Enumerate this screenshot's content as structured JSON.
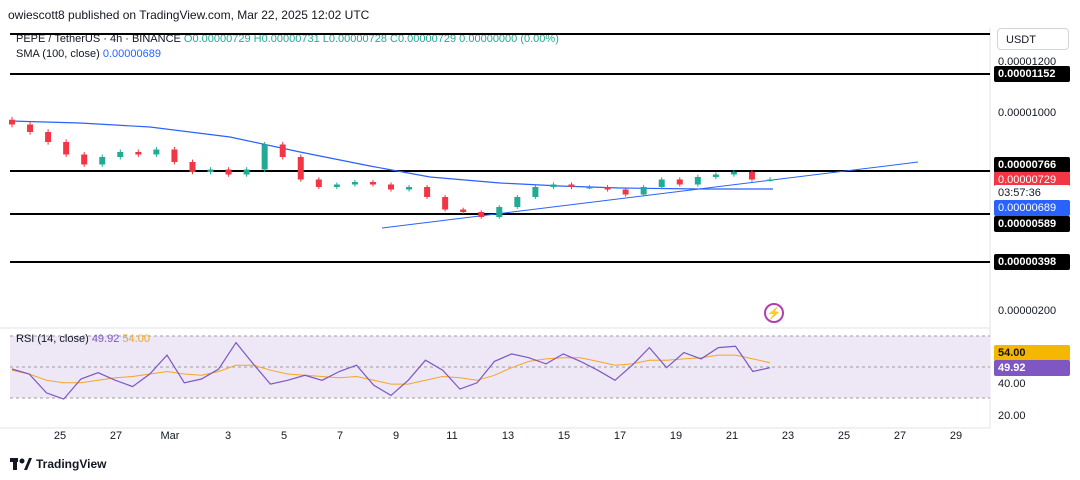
{
  "header": {
    "text": "owiescott8 published on TradingView.com, Mar 22, 2025 12:02 UTC"
  },
  "legend": {
    "symbol": "PEPE / TetherUS · 4h · BINANCE",
    "ohlc": "O0.00000729 H0.00000731 L0.00000728 C0.00000729 0.00000000 (0.00%)",
    "sma_label": "SMA (100, close)",
    "sma_value": "0.00000689"
  },
  "currency_button": "USDT",
  "price_axis": {
    "ticks": [
      "0.00001200",
      "0.00001000",
      "0.00000200"
    ],
    "lines": {
      "l1152": "0.00001152",
      "l766": "0.00000766",
      "l589": "0.00000589",
      "l398": "0.00000398"
    },
    "last_price": "0.00000729",
    "countdown": "03:57:36",
    "sma_price": "0.00000689"
  },
  "rsi": {
    "label": "RSI (14, close)",
    "value": "49.92",
    "ma_value": "54.00",
    "ticks": [
      "40.00",
      "20.00"
    ]
  },
  "x_axis": {
    "labels": [
      "25",
      "27",
      "Mar",
      "3",
      "5",
      "7",
      "9",
      "11",
      "13",
      "15",
      "17",
      "19",
      "21",
      "23",
      "25",
      "27",
      "29"
    ]
  },
  "footer": {
    "brand": "TradingView"
  },
  "colors": {
    "up": "#22ab94",
    "down": "#f23645",
    "sma": "#2962ff",
    "rsi": "#7e57c2",
    "rsi_ma": "#f5a623",
    "rsi_band": "#ede7f6"
  },
  "chart_data": {
    "type": "candlestick",
    "resistance_support_levels": [
      1.152e-05,
      7.66e-06,
      5.89e-06,
      3.98e-06
    ],
    "close_series": [
      9.5e-06,
      9.2e-06,
      8.8e-06,
      8.3e-06,
      7.9e-06,
      8.2e-06,
      8.4e-06,
      8.3e-06,
      8.5e-06,
      8e-06,
      7.6e-06,
      7.7e-06,
      7.5e-06,
      7.7e-06,
      8.7e-06,
      8.2e-06,
      7.3e-06,
      7e-06,
      7.1e-06,
      7.2e-06,
      7.1e-06,
      6.9e-06,
      7e-06,
      6.6e-06,
      6.1e-06,
      6e-06,
      5.8e-06,
      6.2e-06,
      6.6e-06,
      7e-06,
      7.1e-06,
      7e-06,
      7e-06,
      6.9e-06,
      6.7e-06,
      7e-06,
      7.3e-06,
      7.1e-06,
      7.4e-06,
      7.5e-06,
      7.6e-06,
      7.3e-06,
      7.3e-06
    ],
    "sma_series": [
      9.5e-06,
      9.4e-06,
      9.2e-06,
      9e-06,
      8.7e-06,
      8.4e-06,
      8.1e-06,
      7.7e-06,
      7.4e-06,
      7.2e-06,
      7.1e-06,
      7e-06,
      6.9e-06,
      6.9e-06
    ],
    "rsi_series": [
      49,
      45,
      30,
      25,
      41,
      46,
      40,
      35,
      45,
      60,
      38,
      41,
      49,
      70,
      53,
      37,
      40,
      44,
      40,
      47,
      52,
      36,
      28,
      40,
      56,
      48,
      33,
      38,
      55,
      61,
      58,
      53,
      61,
      55,
      48,
      40,
      52,
      66,
      50,
      62,
      57,
      66,
      67,
      47,
      50
    ],
    "rsi_ma_series": [
      48,
      45,
      40,
      38,
      38,
      40,
      42,
      43,
      45,
      47,
      45,
      44,
      47,
      52,
      52,
      48,
      45,
      44,
      43,
      42,
      43,
      40,
      37,
      37,
      40,
      43,
      42,
      40,
      44,
      50,
      55,
      57,
      58,
      58,
      55,
      52,
      53,
      56,
      56,
      57,
      58,
      60,
      60,
      57,
      54
    ],
    "rsi_ylim": [
      10,
      80
    ]
  }
}
